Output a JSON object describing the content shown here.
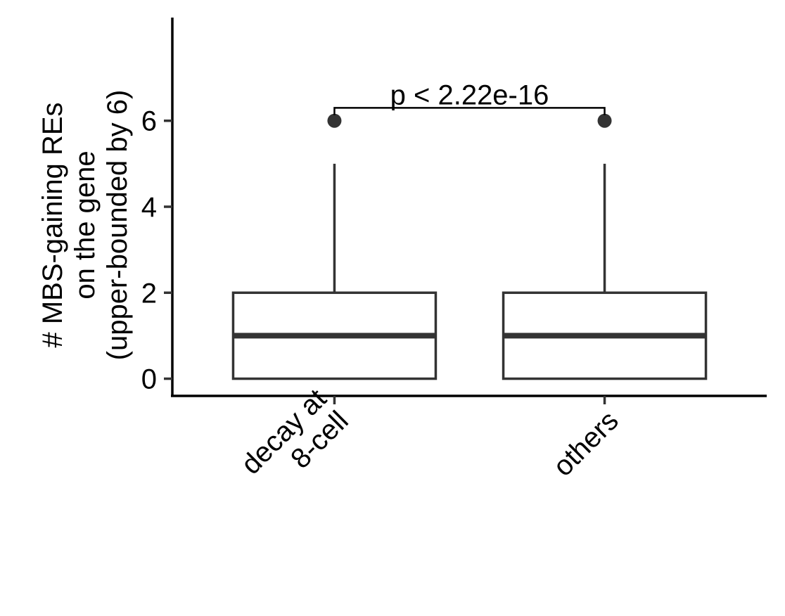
{
  "chart_data": {
    "type": "box",
    "categories": [
      "decay at\n8-cell",
      "others"
    ],
    "boxes": [
      {
        "category": "decay at\n8-cell",
        "q1": 0,
        "median": 1,
        "q3": 2,
        "whisker_low": 0,
        "whisker_high": 5,
        "outliers": [
          6
        ]
      },
      {
        "category": "others",
        "q1": 0,
        "median": 1,
        "q3": 2,
        "whisker_low": 0,
        "whisker_high": 5,
        "outliers": [
          6
        ]
      }
    ],
    "ylabel": [
      "# MBS-gaining REs",
      "on the gene",
      "(upper-bounded by 6)"
    ],
    "yticks": [
      0,
      2,
      4,
      6
    ],
    "ylim": [
      -0.4,
      8.4
    ],
    "annotation": "p < 2.22e-16",
    "grid": false,
    "colors": {
      "box_stroke": "#333333",
      "axis": "#000000",
      "fill": "#ffffff"
    }
  }
}
